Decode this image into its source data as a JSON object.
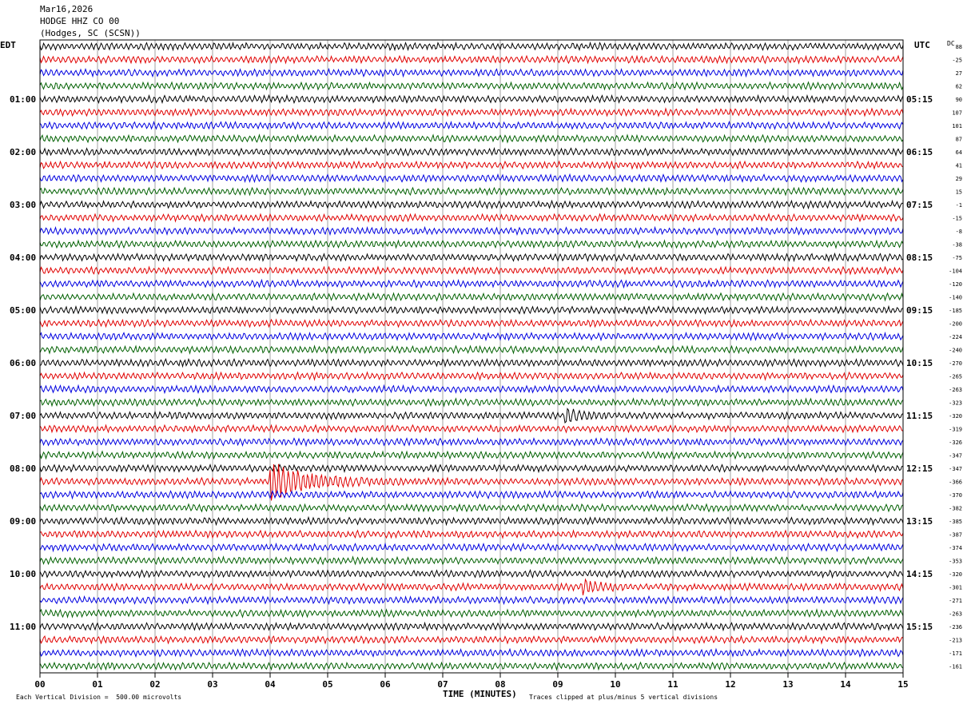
{
  "header": {
    "date": "Mar16,2026",
    "station": "HODGE HHZ CO 00",
    "location": "(Hodges, SC (SCSN))"
  },
  "left_timezone": "EDT",
  "right_timezone": "UTC",
  "dc_label": "DC",
  "footer": {
    "scale_note": "Each Vertical Division =  500.00 microvolts",
    "clip_note": "Traces clipped at plus/minus 5 vertical divisions"
  },
  "colors": {
    "cycle": [
      "#000000",
      "#e00000",
      "#0000e0",
      "#006000"
    ],
    "grid": "#666666"
  },
  "chart_data": {
    "type": "line",
    "title": "HODGE HHZ CO 00",
    "xlabel": "TIME (MINUTES)",
    "xlim": [
      0,
      15
    ],
    "x_ticks": [
      "00",
      "01",
      "02",
      "03",
      "04",
      "05",
      "06",
      "07",
      "08",
      "09",
      "10",
      "11",
      "12",
      "13",
      "14",
      "15"
    ],
    "rows_per_hour": 4,
    "minutes_per_row": 15,
    "left_hour_labels": [
      "01:00",
      "02:00",
      "03:00",
      "04:00",
      "05:00",
      "06:00",
      "07:00",
      "08:00",
      "09:00",
      "10:00",
      "11:00"
    ],
    "right_hour_labels": [
      "05:15",
      "06:15",
      "07:15",
      "08:15",
      "09:15",
      "10:15",
      "11:15",
      "12:15",
      "13:15",
      "14:15",
      "15:15"
    ],
    "dc_offsets": [
      "88",
      "-25",
      "27",
      "62",
      "90",
      "107",
      "101",
      "87",
      "64",
      "41",
      "29",
      "15",
      "-1",
      "-15",
      "-8",
      "-38",
      "-75",
      "-104",
      "-120",
      "-140",
      "-185",
      "-200",
      "-224",
      "-240",
      "-270",
      "-265",
      "-263",
      "-323",
      "-320",
      "-319",
      "-326",
      "-347",
      "-347",
      "-366",
      "-370",
      "-382",
      "-385",
      "-387",
      "-374",
      "-353",
      "-320",
      "-301",
      "-271",
      "-263",
      "-236",
      "-213",
      "-171",
      "-161"
    ],
    "events": [
      {
        "row": 33,
        "minute": 4.0,
        "amplitude": "large",
        "note": ""
      },
      {
        "row": 28,
        "minute": 9.1,
        "amplitude": "small",
        "note": ""
      },
      {
        "row": 41,
        "minute": 9.4,
        "amplitude": "small",
        "note": ""
      }
    ]
  }
}
